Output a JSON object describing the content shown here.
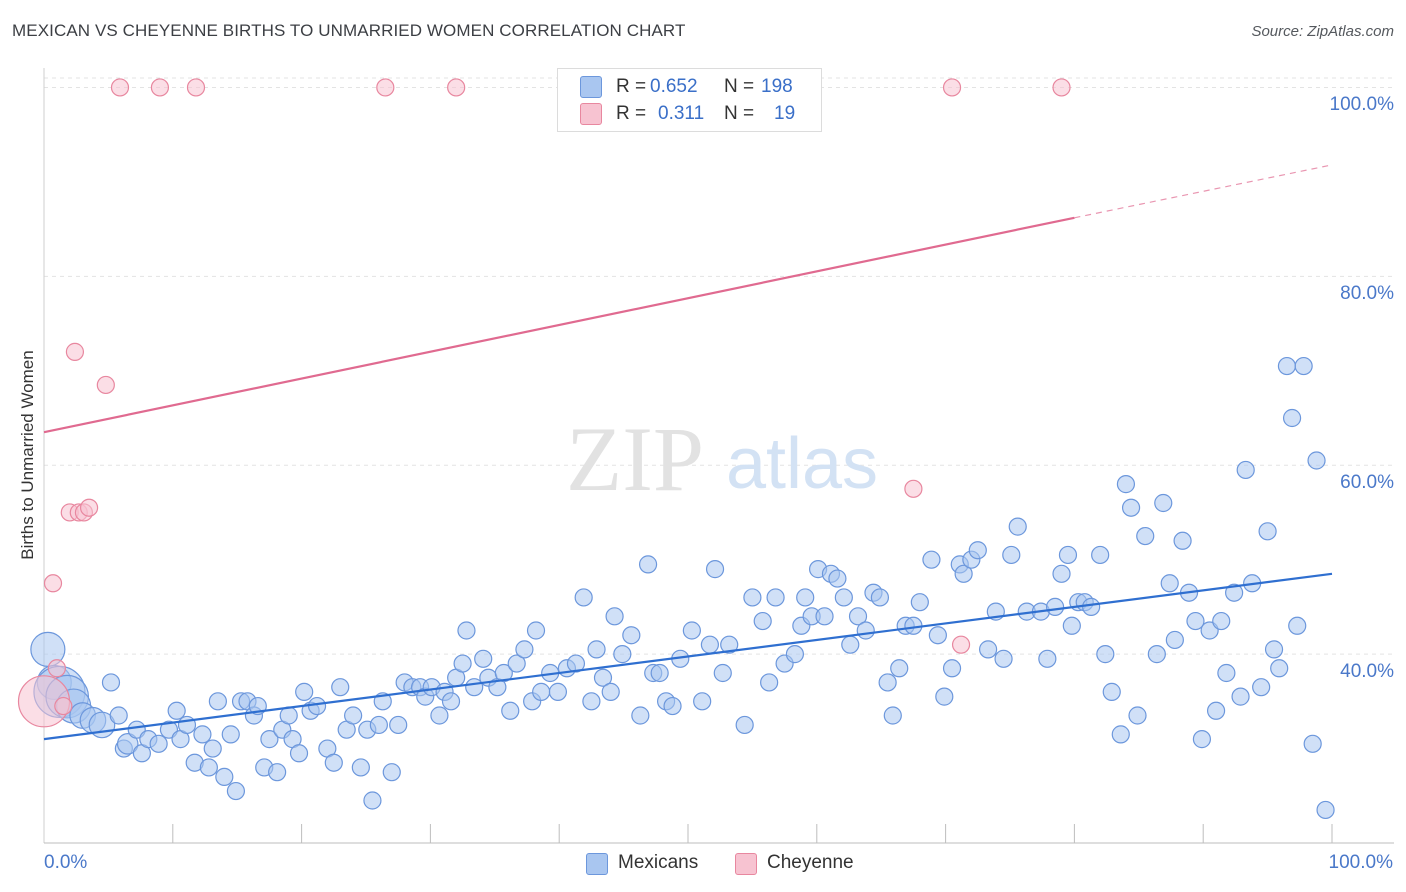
{
  "title": "MEXICAN VS CHEYENNE BIRTHS TO UNMARRIED WOMEN CORRELATION CHART",
  "source": "Source: ZipAtlas.com",
  "watermark": {
    "zip": "ZIP",
    "atlas": "atlas"
  },
  "legend": {
    "r_label": "R =",
    "n_label": "N =",
    "rows": [
      {
        "name": "Mexicans",
        "r": "0.652",
        "n": "198",
        "color": "#a9c6f0",
        "edge": "#6c97dc"
      },
      {
        "name": "Cheyenne",
        "r": "0.311",
        "n": "19",
        "color": "#f7c3d1",
        "edge": "#e8879f"
      }
    ]
  },
  "chart_data": {
    "type": "scatter",
    "title": "MEXICAN VS CHEYENNE BIRTHS TO UNMARRIED WOMEN CORRELATION CHART",
    "xlabel": "",
    "ylabel": "Births to Unmarried Women",
    "x_tick_labels": [
      "0.0%",
      "100.0%"
    ],
    "y_tick_labels": [
      "40.0%",
      "60.0%",
      "80.0%",
      "100.0%"
    ],
    "y_ticks": [
      40,
      60,
      80,
      100
    ],
    "xlim": [
      0,
      100
    ],
    "ylim": [
      20,
      101
    ],
    "series": [
      {
        "name": "Mexicans",
        "color": "#a9c6f0",
        "edge": "#6c97dc",
        "trend": {
          "x0": 0,
          "y0": 31.0,
          "x1": 100,
          "y1": 48.5,
          "color": "#2f6fd0"
        },
        "points": [
          [
            0.3,
            40.5,
            2
          ],
          [
            0.8,
            37,
            2
          ],
          [
            1.2,
            36,
            3
          ],
          [
            1.8,
            35.5,
            2.5
          ],
          [
            2.3,
            34.5,
            2
          ],
          [
            3,
            33.5,
            1.5
          ],
          [
            3.8,
            33,
            1.5
          ],
          [
            4.5,
            32.5,
            1.5
          ],
          [
            5.2,
            37,
            1
          ],
          [
            5.8,
            33.5,
            1
          ],
          [
            6.2,
            30,
            1
          ],
          [
            6.5,
            30.5,
            1.2
          ],
          [
            7.2,
            32,
            1
          ],
          [
            7.6,
            29.5,
            1
          ],
          [
            8.1,
            31,
            1
          ],
          [
            8.9,
            30.5,
            1
          ],
          [
            9.7,
            32,
            1
          ],
          [
            10.3,
            34,
            1
          ],
          [
            10.6,
            31,
            1
          ],
          [
            11.1,
            32.5,
            1
          ],
          [
            11.7,
            28.5,
            1
          ],
          [
            12.3,
            31.5,
            1
          ],
          [
            12.8,
            28,
            1
          ],
          [
            13.1,
            30,
            1
          ],
          [
            13.5,
            35,
            1
          ],
          [
            14,
            27,
            1
          ],
          [
            14.5,
            31.5,
            1
          ],
          [
            14.9,
            25.5,
            1
          ],
          [
            15.3,
            35,
            1
          ],
          [
            15.8,
            35,
            1
          ],
          [
            16.3,
            33.5,
            1
          ],
          [
            16.6,
            34.5,
            1
          ],
          [
            17.1,
            28,
            1
          ],
          [
            17.5,
            31,
            1
          ],
          [
            18.1,
            27.5,
            1
          ],
          [
            18.5,
            32,
            1
          ],
          [
            19,
            33.5,
            1
          ],
          [
            19.3,
            31,
            1
          ],
          [
            19.8,
            29.5,
            1
          ],
          [
            20.2,
            36,
            1
          ],
          [
            20.7,
            34,
            1
          ],
          [
            21.2,
            34.5,
            1
          ],
          [
            22,
            30,
            1
          ],
          [
            22.5,
            28.5,
            1
          ],
          [
            23,
            36.5,
            1
          ],
          [
            23.5,
            32,
            1
          ],
          [
            24,
            33.5,
            1
          ],
          [
            24.6,
            28,
            1
          ],
          [
            25.1,
            32,
            1
          ],
          [
            25.5,
            24.5,
            1
          ],
          [
            26,
            32.5,
            1
          ],
          [
            26.3,
            35,
            1
          ],
          [
            27,
            27.5,
            1
          ],
          [
            27.5,
            32.5,
            1
          ],
          [
            28,
            37,
            1
          ],
          [
            28.6,
            36.5,
            1
          ],
          [
            29.2,
            36.5,
            1
          ],
          [
            29.6,
            35.5,
            1
          ],
          [
            30.1,
            36.5,
            1
          ],
          [
            30.7,
            33.5,
            1
          ],
          [
            31.1,
            36,
            1
          ],
          [
            31.6,
            35,
            1
          ],
          [
            32,
            37.5,
            1
          ],
          [
            32.5,
            39,
            1
          ],
          [
            32.8,
            42.5,
            1
          ],
          [
            33.4,
            36.5,
            1
          ],
          [
            34.1,
            39.5,
            1
          ],
          [
            34.5,
            37.5,
            1
          ],
          [
            35.2,
            36.5,
            1
          ],
          [
            35.7,
            38,
            1
          ],
          [
            36.2,
            34,
            1
          ],
          [
            36.7,
            39,
            1
          ],
          [
            37.3,
            40.5,
            1
          ],
          [
            37.9,
            35,
            1
          ],
          [
            38.2,
            42.5,
            1
          ],
          [
            38.6,
            36,
            1
          ],
          [
            39.3,
            38,
            1
          ],
          [
            39.9,
            36,
            1
          ],
          [
            40.6,
            38.5,
            1
          ],
          [
            41.3,
            39,
            1
          ],
          [
            41.9,
            46,
            1
          ],
          [
            42.5,
            35,
            1
          ],
          [
            42.9,
            40.5,
            1
          ],
          [
            43.4,
            37.5,
            1
          ],
          [
            44,
            36,
            1
          ],
          [
            44.3,
            44,
            1
          ],
          [
            44.9,
            40,
            1
          ],
          [
            45.6,
            42,
            1
          ],
          [
            46.3,
            33.5,
            1
          ],
          [
            46.9,
            49.5,
            1
          ],
          [
            47.3,
            38,
            1
          ],
          [
            47.8,
            38,
            1
          ],
          [
            48.3,
            35,
            1
          ],
          [
            48.8,
            34.5,
            1
          ],
          [
            49.4,
            39.5,
            1
          ],
          [
            50.3,
            42.5,
            1
          ],
          [
            51.1,
            35,
            1
          ],
          [
            51.7,
            41,
            1
          ],
          [
            52.1,
            49,
            1
          ],
          [
            52.7,
            38,
            1
          ],
          [
            53.2,
            41,
            1
          ],
          [
            54.4,
            32.5,
            1
          ],
          [
            55,
            46,
            1
          ],
          [
            55.8,
            43.5,
            1
          ],
          [
            56.3,
            37,
            1
          ],
          [
            56.8,
            46,
            1
          ],
          [
            57.5,
            39,
            1
          ],
          [
            58.3,
            40,
            1
          ],
          [
            58.8,
            43,
            1
          ],
          [
            59.1,
            46,
            1
          ],
          [
            59.6,
            44,
            1
          ],
          [
            60.1,
            49,
            1
          ],
          [
            60.6,
            44,
            1
          ],
          [
            61.1,
            48.5,
            1
          ],
          [
            61.6,
            48,
            1
          ],
          [
            62.1,
            46,
            1
          ],
          [
            62.6,
            41,
            1
          ],
          [
            63.2,
            44,
            1
          ],
          [
            63.8,
            42.5,
            1
          ],
          [
            64.4,
            46.5,
            1
          ],
          [
            64.9,
            46,
            1
          ],
          [
            65.5,
            37,
            1
          ],
          [
            65.9,
            33.5,
            1
          ],
          [
            66.4,
            38.5,
            1
          ],
          [
            66.9,
            43,
            1
          ],
          [
            67.5,
            43,
            1
          ],
          [
            68,
            45.5,
            1
          ],
          [
            68.9,
            50,
            1
          ],
          [
            69.4,
            42,
            1
          ],
          [
            69.9,
            35.5,
            1
          ],
          [
            70.5,
            38.5,
            1
          ],
          [
            71.1,
            49.5,
            1
          ],
          [
            71.4,
            48.5,
            1
          ],
          [
            72,
            50,
            1
          ],
          [
            72.5,
            51,
            1
          ],
          [
            73.3,
            40.5,
            1
          ],
          [
            73.9,
            44.5,
            1
          ],
          [
            74.5,
            39.5,
            1
          ],
          [
            75.1,
            50.5,
            1
          ],
          [
            75.6,
            53.5,
            1
          ],
          [
            76.3,
            44.5,
            1
          ],
          [
            77.4,
            44.5,
            1
          ],
          [
            77.9,
            39.5,
            1
          ],
          [
            78.5,
            45,
            1
          ],
          [
            79,
            48.5,
            1
          ],
          [
            79.5,
            50.5,
            1
          ],
          [
            79.8,
            43,
            1
          ],
          [
            80.3,
            45.5,
            1
          ],
          [
            80.8,
            45.5,
            1
          ],
          [
            81.3,
            45,
            1
          ],
          [
            82,
            50.5,
            1
          ],
          [
            82.4,
            40,
            1
          ],
          [
            82.9,
            36,
            1
          ],
          [
            83.6,
            31.5,
            1
          ],
          [
            84,
            58,
            1
          ],
          [
            84.4,
            55.5,
            1
          ],
          [
            84.9,
            33.5,
            1
          ],
          [
            85.5,
            52.5,
            1
          ],
          [
            86.4,
            40,
            1
          ],
          [
            86.9,
            56,
            1
          ],
          [
            87.4,
            47.5,
            1
          ],
          [
            87.8,
            41.5,
            1
          ],
          [
            88.4,
            52,
            1
          ],
          [
            88.9,
            46.5,
            1
          ],
          [
            89.4,
            43.5,
            1
          ],
          [
            89.9,
            31,
            1
          ],
          [
            90.5,
            42.5,
            1
          ],
          [
            91,
            34,
            1
          ],
          [
            91.4,
            43.5,
            1
          ],
          [
            91.8,
            38,
            1
          ],
          [
            92.4,
            46.5,
            1
          ],
          [
            92.9,
            35.5,
            1
          ],
          [
            93.3,
            59.5,
            1
          ],
          [
            93.8,
            47.5,
            1
          ],
          [
            94.5,
            36.5,
            1
          ],
          [
            95,
            53,
            1
          ],
          [
            95.5,
            40.5,
            1
          ],
          [
            95.9,
            38.5,
            1
          ],
          [
            96.5,
            70.5,
            1
          ],
          [
            96.9,
            65,
            1
          ],
          [
            97.3,
            43,
            1
          ],
          [
            97.8,
            70.5,
            1
          ],
          [
            98.5,
            30.5,
            1
          ],
          [
            98.8,
            60.5,
            1
          ],
          [
            99.5,
            23.5,
            1
          ]
        ]
      },
      {
        "name": "Cheyenne",
        "color": "#f7c3d1",
        "edge": "#e8879f",
        "trend": {
          "x0": 0,
          "y0": 63.5,
          "x1": 80,
          "y1": 86.2,
          "x_dash_end": 100,
          "y_dash_end": 91.8,
          "color": "#e06a90"
        },
        "points": [
          [
            0,
            35,
            3
          ],
          [
            0.7,
            47.5,
            1
          ],
          [
            1,
            38.5,
            1
          ],
          [
            1.5,
            34.5,
            1
          ],
          [
            2,
            55,
            1
          ],
          [
            2.4,
            72,
            1
          ],
          [
            2.7,
            55,
            1
          ],
          [
            3.1,
            55,
            1
          ],
          [
            3.5,
            55.5,
            1
          ],
          [
            4.8,
            68.5,
            1
          ],
          [
            5.9,
            100,
            1
          ],
          [
            9,
            100,
            1
          ],
          [
            11.8,
            100,
            1
          ],
          [
            26.5,
            100,
            1
          ],
          [
            32,
            100,
            1
          ],
          [
            67.5,
            57.5,
            1
          ],
          [
            70.5,
            100,
            1
          ],
          [
            71.2,
            41,
            1
          ],
          [
            79,
            100,
            1
          ]
        ]
      }
    ]
  }
}
